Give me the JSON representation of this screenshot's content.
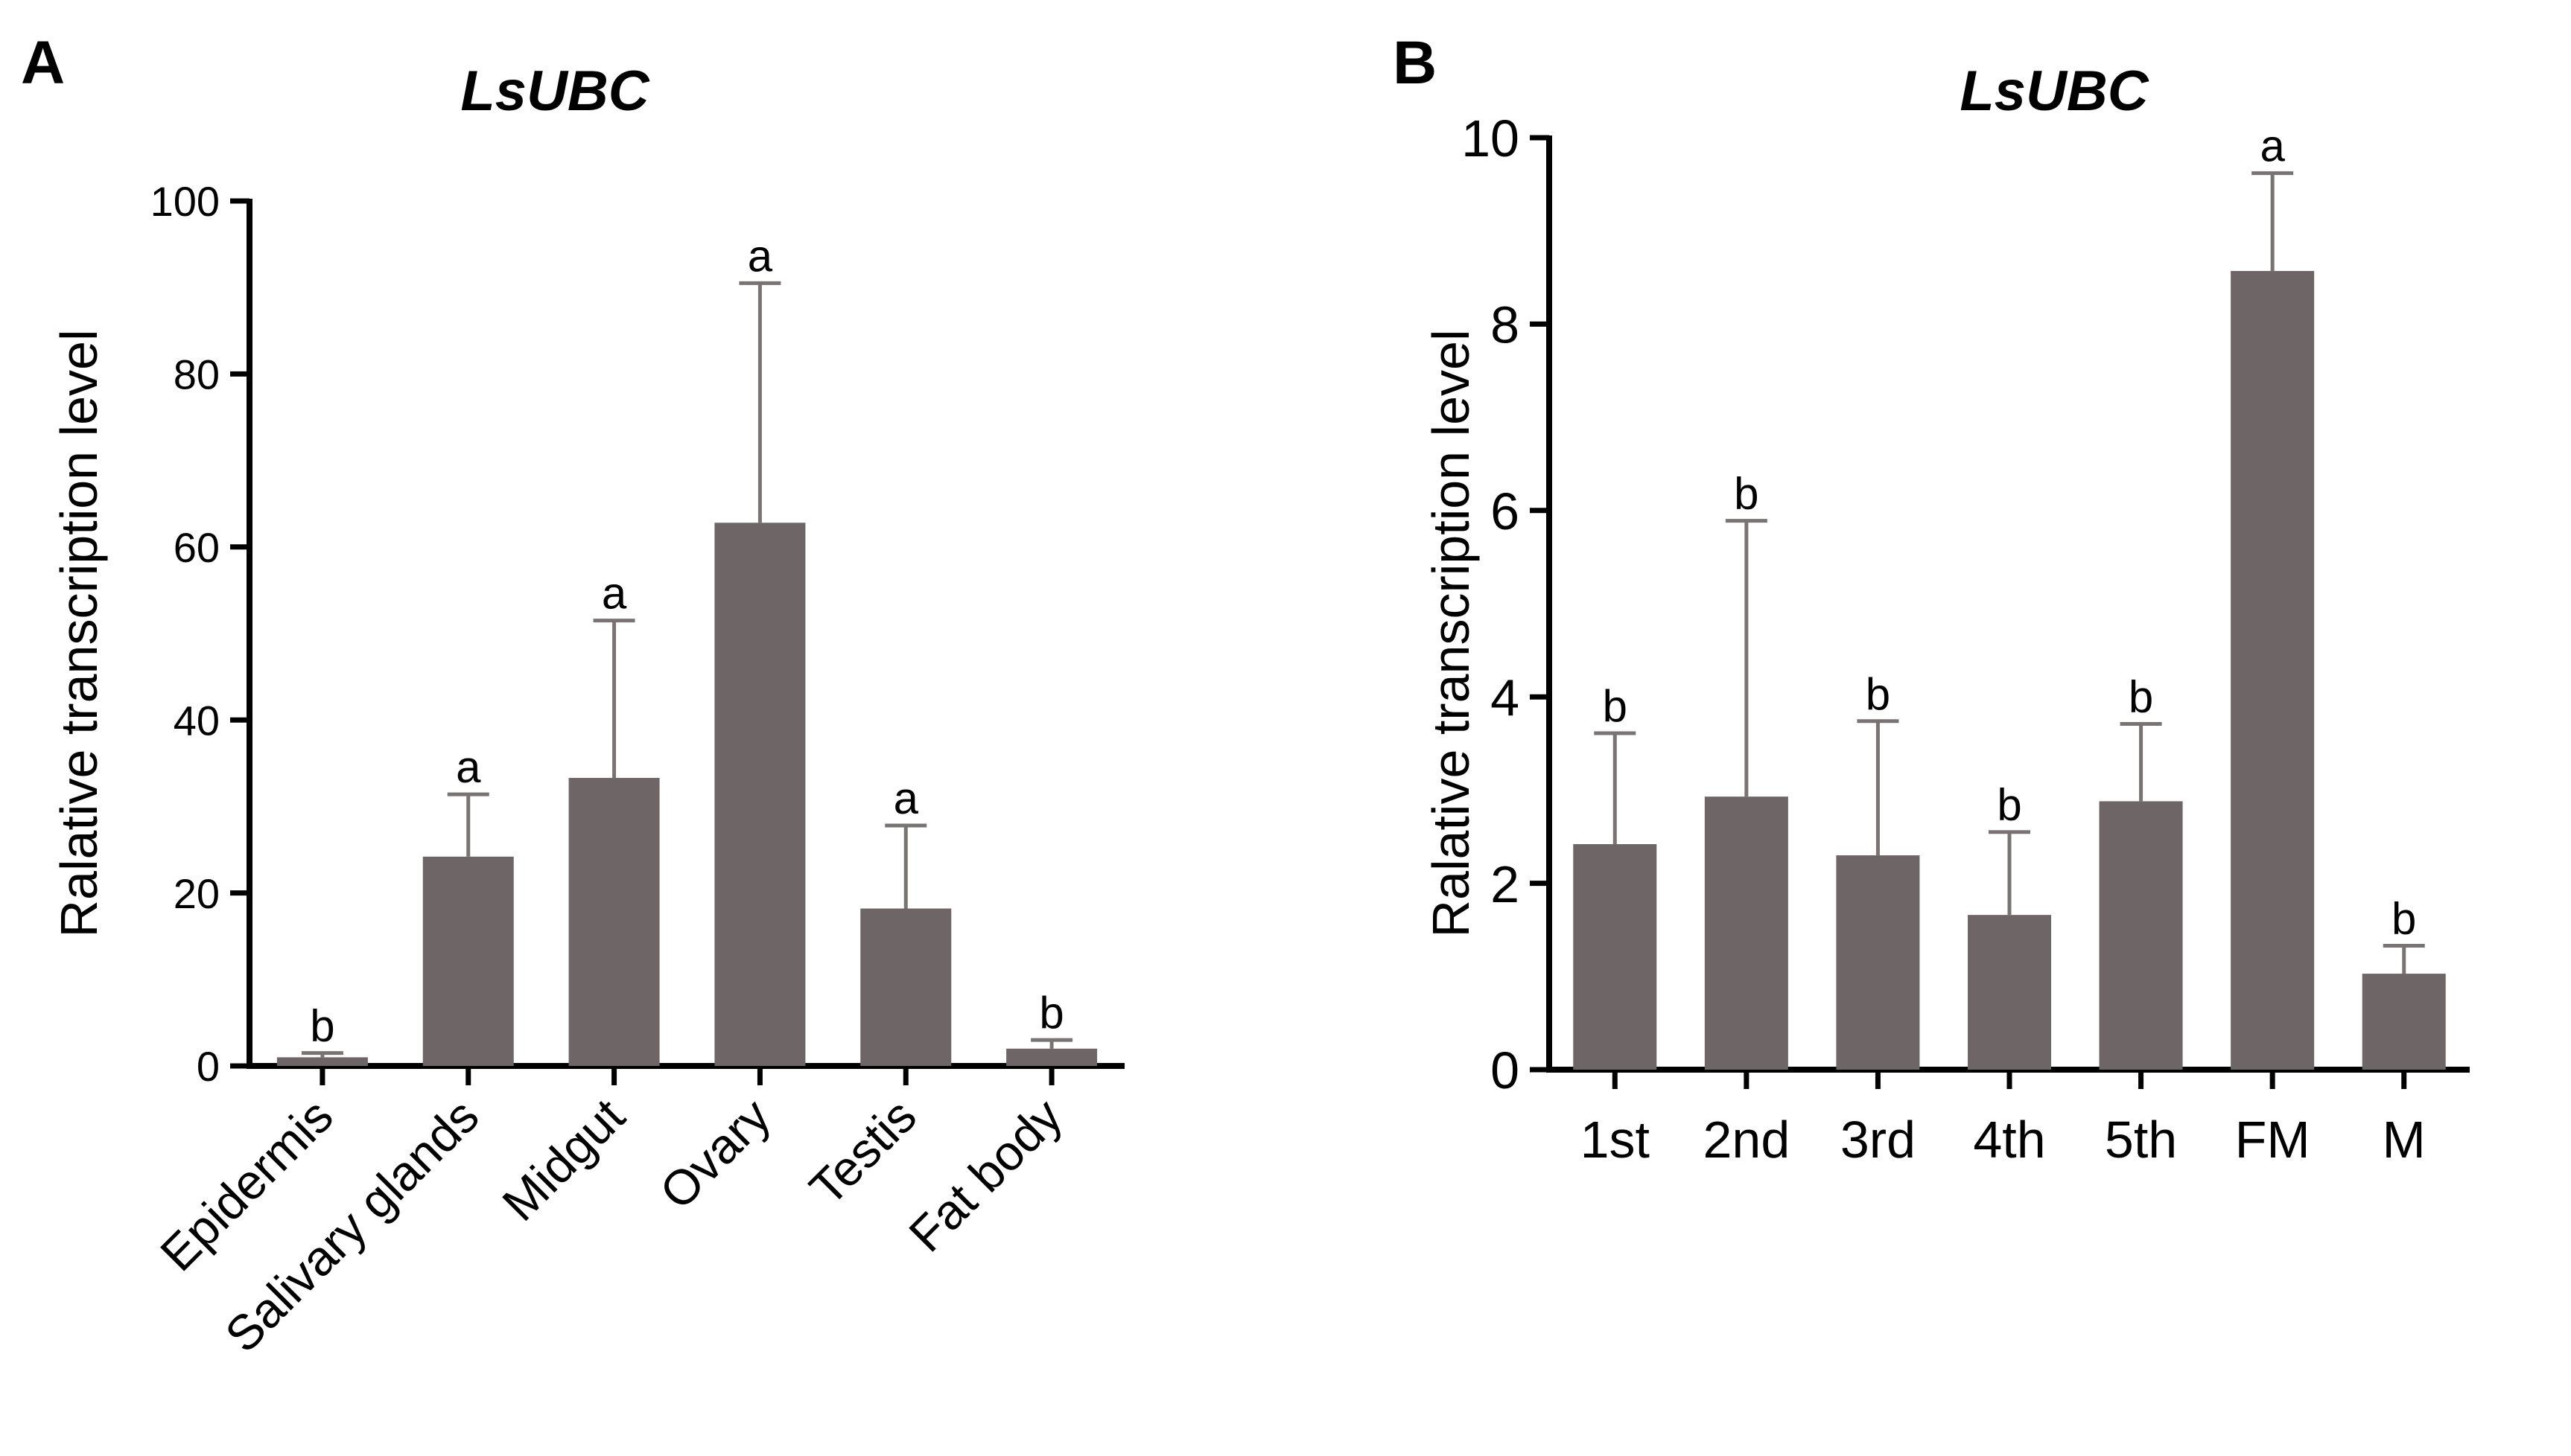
{
  "chart_data": [
    {
      "panel": "A",
      "type": "bar",
      "title": "LsUBC",
      "xlabel": "",
      "ylabel": "Ralative transcription level",
      "ylim": [
        0,
        100
      ],
      "yticks": [
        0,
        20,
        40,
        60,
        80,
        100
      ],
      "categories": [
        "Epidermis",
        "Salivary glands",
        "Midgut",
        "Ovary",
        "Testis",
        "Fat body"
      ],
      "values": [
        1.0,
        24.2,
        33.3,
        62.8,
        18.2,
        2.0
      ],
      "errors": [
        0.5,
        7.2,
        18.2,
        27.7,
        9.6,
        1.0
      ],
      "labels": [
        "b",
        "a",
        "a",
        "a",
        "a",
        "b"
      ],
      "bar_color": "#6e6566",
      "error_color": "#7a7374",
      "rotate_xticks": true
    },
    {
      "panel": "B",
      "type": "bar",
      "title": "LsUBC",
      "xlabel": "",
      "ylabel": "Ralative transcription level",
      "ylim": [
        0,
        10
      ],
      "yticks": [
        0,
        2,
        4,
        6,
        8,
        10
      ],
      "categories": [
        "1st",
        "2nd",
        "3rd",
        "4th",
        "5th",
        "FM",
        "M"
      ],
      "values": [
        2.42,
        2.93,
        2.3,
        1.66,
        2.88,
        8.57,
        1.03
      ],
      "errors": [
        1.19,
        2.96,
        1.44,
        0.89,
        0.83,
        1.05,
        0.3
      ],
      "labels": [
        "b",
        "b",
        "b",
        "b",
        "b",
        "a",
        "b"
      ],
      "bar_color": "#6e6566",
      "error_color": "#7a7374",
      "rotate_xticks": false
    }
  ]
}
